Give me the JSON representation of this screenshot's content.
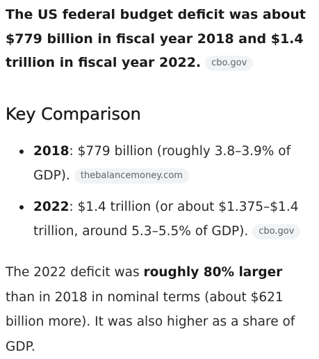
{
  "lead": {
    "text": "The US federal budget deficit was about $779 billion in fiscal year 2018 and $1.4 trillion in fiscal year 2022.",
    "source": "cbo.gov"
  },
  "key_comparison": {
    "heading": "Key Comparison",
    "items": [
      {
        "year": "2018",
        "text": ": $779 billion (roughly 3.8–3.9% of GDP).",
        "source": "thebalancemoney.com"
      },
      {
        "year": "2022",
        "text": ": $1.4 trillion (or about $1.375–$1.4 trillion, around 5.3–5.5% of GDP).",
        "source": "cbo.gov"
      }
    ]
  },
  "summary": {
    "before": "The 2022 deficit was ",
    "emphasis": "roughly 80% larger",
    "after": " than in 2018 in nominal terms (about $621 billion more). It was also higher as a share of GDP."
  }
}
